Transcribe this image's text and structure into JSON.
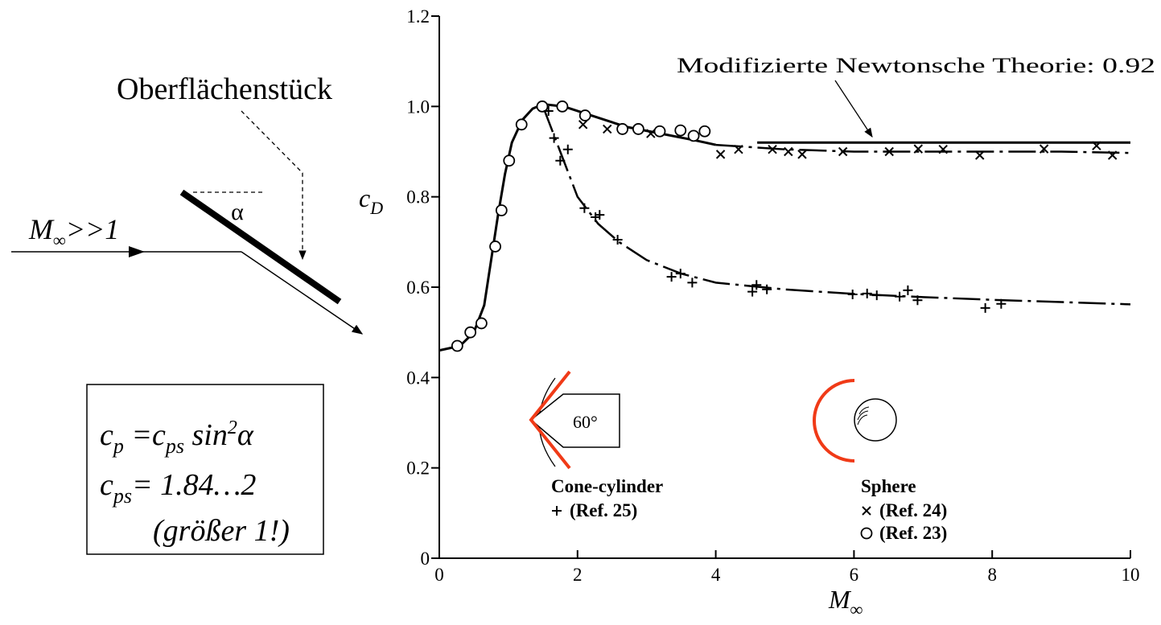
{
  "diagram": {
    "flow_label": [
      "M",
      "∞",
      ">>1"
    ],
    "angle": "α",
    "surface_label": "Oberflächenstück",
    "formula": {
      "line1": [
        "c",
        "p",
        " =c",
        "ps",
        " sin",
        "2",
        "α"
      ],
      "line2": [
        "c",
        "ps",
        "= 1.84…2"
      ],
      "line3": "(größer 1!)"
    }
  },
  "chart_data": {
    "type": "scatter",
    "xlim": [
      0,
      10
    ],
    "ylim": [
      0,
      1.2
    ],
    "xticks": [
      0,
      2,
      4,
      6,
      8,
      10
    ],
    "yticks": [
      0,
      0.2,
      0.4,
      0.6,
      0.8,
      {
        "value": 1,
        "label": "1.0"
      },
      1.2
    ],
    "xlabel": [
      "M",
      "∞"
    ],
    "ylabel": [
      "c",
      "D"
    ],
    "series": [
      {
        "name": "(Ref. 23)",
        "marker": "circle",
        "color": "#000000",
        "x": [
          0.26,
          0.45,
          0.61,
          0.81,
          0.9,
          1.01,
          1.19,
          1.49,
          1.78,
          2.11,
          2.65,
          2.88,
          3.19,
          3.49,
          3.68,
          3.84
        ],
        "y": [
          0.47,
          0.5,
          0.52,
          0.69,
          0.77,
          0.88,
          0.96,
          1.0,
          1.0,
          0.98,
          0.95,
          0.95,
          0.945,
          0.947,
          0.935,
          0.945
        ]
      },
      {
        "name": "(Ref. 24)",
        "marker": "x",
        "color": "#000000",
        "x": [
          2.08,
          2.43,
          3.06,
          4.07,
          4.33,
          4.82,
          5.05,
          5.25,
          5.84,
          6.51,
          6.93,
          7.29,
          7.82,
          8.75,
          9.51,
          9.74
        ],
        "y": [
          0.96,
          0.95,
          0.94,
          0.894,
          0.905,
          0.905,
          0.9,
          0.894,
          0.9,
          0.9,
          0.906,
          0.905,
          0.892,
          0.906,
          0.913,
          0.892
        ]
      },
      {
        "name": "(Ref. 25)",
        "marker": "plus",
        "color": "#000000",
        "x": [
          1.58,
          1.66,
          1.75,
          1.86,
          2.1,
          2.26,
          2.32,
          2.58,
          3.36,
          3.49,
          3.66,
          4.53,
          4.59,
          4.74,
          5.98,
          6.19,
          6.33,
          6.66,
          6.78,
          6.92,
          7.9,
          8.13
        ],
        "y": [
          0.99,
          0.93,
          0.88,
          0.905,
          0.775,
          0.755,
          0.76,
          0.705,
          0.623,
          0.63,
          0.61,
          0.59,
          0.605,
          0.595,
          0.584,
          0.586,
          0.582,
          0.579,
          0.593,
          0.571,
          0.554,
          0.563
        ]
      }
    ],
    "curves": [
      {
        "style": "solid",
        "x": [
          0,
          0.3,
          0.5,
          0.65,
          0.75,
          0.85,
          0.95,
          1.05,
          1.2,
          1.35,
          1.5,
          1.8,
          2.2,
          2.7,
          3.2,
          3.7,
          4.0
        ],
        "y": [
          0.46,
          0.47,
          0.5,
          0.56,
          0.66,
          0.76,
          0.85,
          0.92,
          0.97,
          0.995,
          1.005,
          1.0,
          0.98,
          0.955,
          0.94,
          0.925,
          0.915
        ]
      },
      {
        "style": "dashdot",
        "x": [
          4.0,
          5,
          6,
          7,
          8,
          9,
          10
        ],
        "y": [
          0.915,
          0.905,
          0.9,
          0.9,
          0.9,
          0.9,
          0.897
        ]
      },
      {
        "style": "dashdot",
        "x": [
          1.5,
          1.75,
          2.0,
          2.3,
          2.6,
          3.0,
          3.5,
          4.0,
          5,
          6,
          7,
          8,
          9,
          10
        ],
        "y": [
          1.0,
          0.9,
          0.8,
          0.74,
          0.7,
          0.66,
          0.63,
          0.61,
          0.595,
          0.585,
          0.578,
          0.572,
          0.567,
          0.562
        ]
      }
    ],
    "reference_line": {
      "label": "Modifizierte Newtonsche Theorie: 0.92",
      "value": 0.92,
      "xlim": [
        4.6,
        10
      ]
    },
    "insets": {
      "cone": {
        "title": "Cone-cylinder",
        "angle": "60°"
      },
      "sphere": {
        "title": "Sphere"
      }
    }
  }
}
